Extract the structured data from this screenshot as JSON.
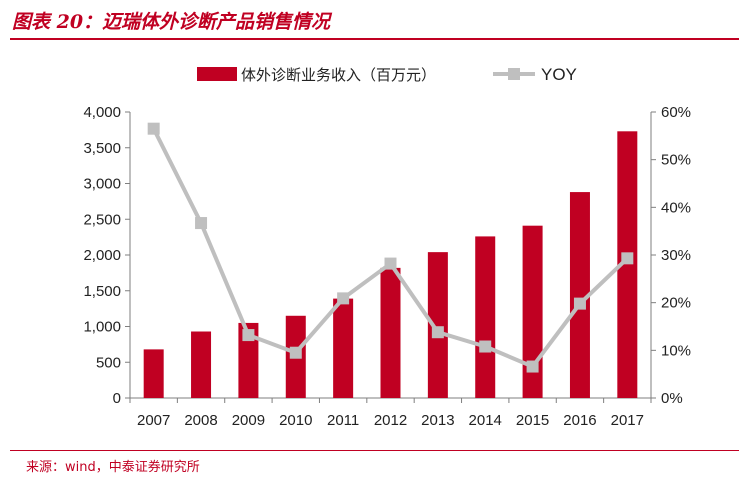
{
  "figure": {
    "title": "图表 20：迈瑞体外诊断产品销售情况",
    "source": "来源：wind，中泰证券研究所"
  },
  "chart_data": {
    "type": "bar",
    "categories": [
      "2007",
      "2008",
      "2009",
      "2010",
      "2011",
      "2012",
      "2013",
      "2014",
      "2015",
      "2016",
      "2017"
    ],
    "series": [
      {
        "name": "体外诊断业务收入（百万元）",
        "type": "bar",
        "axis": "left",
        "color": "#c00022",
        "values": [
          680,
          930,
          1050,
          1150,
          1390,
          1820,
          2040,
          2260,
          2410,
          2880,
          3730
        ]
      },
      {
        "name": "YOY",
        "type": "line",
        "axis": "right",
        "color": "#bfbfbf",
        "unit": "%",
        "values": [
          56.5,
          36.7,
          13.2,
          9.5,
          20.9,
          28.2,
          13.8,
          10.8,
          6.6,
          19.8,
          29.3
        ]
      }
    ],
    "y_left": {
      "min": 0,
      "max": 4000,
      "ticks": [
        0,
        500,
        1000,
        1500,
        2000,
        2500,
        3000,
        3500,
        4000
      ],
      "tick_labels": [
        "0",
        "500",
        "1,000",
        "1,500",
        "2,000",
        "2,500",
        "3,000",
        "3,500",
        "4,000"
      ]
    },
    "y_right": {
      "min": 0,
      "max": 60,
      "ticks": [
        0,
        10,
        20,
        30,
        40,
        50,
        60
      ],
      "tick_labels": [
        "0%",
        "10%",
        "20%",
        "30%",
        "40%",
        "50%",
        "60%"
      ]
    },
    "grid": false,
    "legend_position": "top-center"
  }
}
